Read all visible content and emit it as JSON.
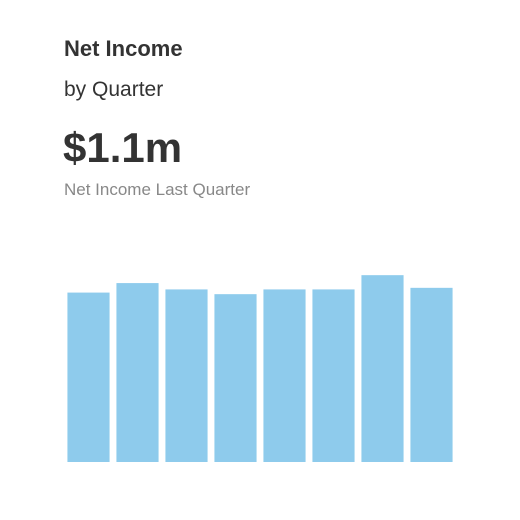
{
  "chart_data": {
    "type": "bar",
    "title": "Net Income",
    "subtitle": "by Quarter",
    "annotations": [
      "$1.1m",
      "Net Income Last Quarter"
    ],
    "values": [
      1.07,
      1.13,
      1.09,
      1.06,
      1.09,
      1.09,
      1.18,
      1.1
    ],
    "color": "#8ecbec",
    "ylim": [
      0,
      1.2
    ],
    "grid": false
  }
}
